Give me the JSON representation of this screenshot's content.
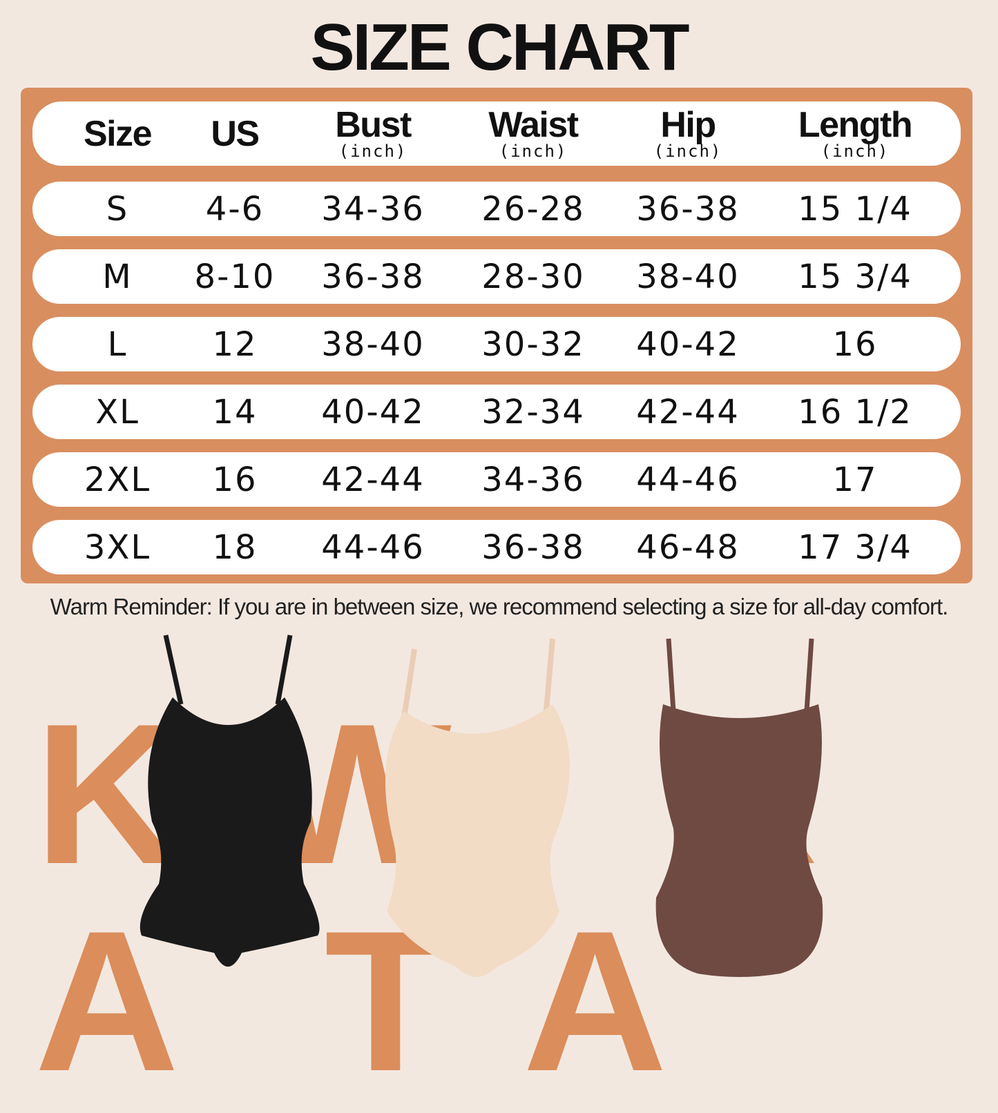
{
  "title": "SIZE CHART",
  "table": {
    "headers": [
      {
        "label": "Size",
        "unit": ""
      },
      {
        "label": "US",
        "unit": ""
      },
      {
        "label": "Bust",
        "unit": "(inch)"
      },
      {
        "label": "Waist",
        "unit": "(inch)"
      },
      {
        "label": "Hip",
        "unit": "(inch)"
      },
      {
        "label": "Length",
        "unit": "(inch)"
      }
    ],
    "rows": [
      [
        "S",
        "4-6",
        "34-36",
        "26-28",
        "36-38",
        "15 1/4"
      ],
      [
        "M",
        "8-10",
        "36-38",
        "28-30",
        "38-40",
        "15 3/4"
      ],
      [
        "L",
        "12",
        "38-40",
        "30-32",
        "40-42",
        "16"
      ],
      [
        "XL",
        "14",
        "40-42",
        "32-34",
        "42-44",
        "16 1/2"
      ],
      [
        "2XL",
        "16",
        "42-44",
        "34-36",
        "44-46",
        "17"
      ],
      [
        "3XL",
        "18",
        "44-46",
        "36-38",
        "46-48",
        "17 3/4"
      ]
    ]
  },
  "reminder": "Warm Reminder: If you are in between size, we recommend selecting a size for all-day comfort.",
  "watermark": "KIWIRATA",
  "products": [
    {
      "name": "black-bodysuit",
      "color": "#1A1A1A"
    },
    {
      "name": "nude-bodysuit",
      "color": "#F2DCC6"
    },
    {
      "name": "brown-bodysuit",
      "color": "#6E4A43"
    }
  ],
  "colors": {
    "background": "#F3E8E0",
    "accent": "#D98E5F",
    "row": "#FFFFFF"
  }
}
